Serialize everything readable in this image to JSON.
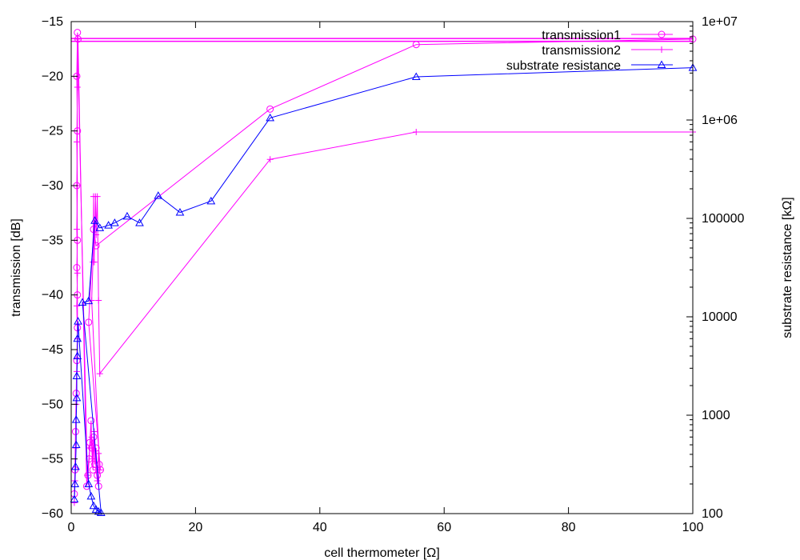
{
  "chart_data": {
    "type": "line",
    "xlabel": "cell thermometer [Ω]",
    "ylabel": "transmission [dB]",
    "y2label": "substrate resistance [kΩ]",
    "xlim": [
      0,
      100
    ],
    "ylim": [
      -60,
      -15
    ],
    "y2lim": [
      100,
      10000000
    ],
    "y2scale": "log",
    "x_ticks": [
      "0",
      "20",
      "40",
      "60",
      "80",
      "100"
    ],
    "y_ticks": [
      "-15",
      "-20",
      "-25",
      "-30",
      "-35",
      "-40",
      "-45",
      "-50",
      "-55",
      "-60"
    ],
    "y2_ticks": [
      "1e+07",
      "1e+06",
      "100000",
      "10000",
      "1000",
      "100"
    ],
    "legend_position": "top-right",
    "grid": false,
    "series": [
      {
        "name": "transmission1",
        "axis": "left",
        "color": "#ff00ff",
        "marker": "circle",
        "points": [
          [
            0.5,
            -58.2
          ],
          [
            0.6,
            -56.0
          ],
          [
            0.7,
            -52.5
          ],
          [
            0.8,
            -49.0
          ],
          [
            0.9,
            -46.0
          ],
          [
            1.0,
            -43.0
          ],
          [
            1.0,
            -40.0
          ],
          [
            0.9,
            -37.5
          ],
          [
            1.0,
            -35.0
          ],
          [
            0.9,
            -30.0
          ],
          [
            1.0,
            -25.0
          ],
          [
            0.9,
            -20.0
          ],
          [
            1.0,
            -16.0
          ],
          [
            1.1,
            -16.6
          ],
          [
            2.5,
            -57.5
          ],
          [
            2.7,
            -56.5
          ],
          [
            2.9,
            -55.0
          ],
          [
            3.0,
            -53.5
          ],
          [
            3.2,
            -51.5
          ],
          [
            3.3,
            -54.0
          ],
          [
            3.5,
            -56.0
          ],
          [
            3.6,
            -53.0
          ],
          [
            3.8,
            -55.5
          ],
          [
            4.0,
            -54.0
          ],
          [
            4.2,
            -56.5
          ],
          [
            4.4,
            -57.5
          ],
          [
            4.5,
            -55.5
          ],
          [
            4.7,
            -56.0
          ],
          [
            2.8,
            -42.5
          ],
          [
            3.6,
            -34.0
          ],
          [
            4.0,
            -35.5
          ],
          [
            32.0,
            -23.0
          ],
          [
            55.5,
            -17.1
          ],
          [
            100.0,
            -16.6
          ]
        ]
      },
      {
        "name": "transmission2",
        "axis": "left",
        "color": "#ff00ff",
        "marker": "plus",
        "points": [
          [
            0.5,
            -59.0
          ],
          [
            0.6,
            -57.0
          ],
          [
            0.7,
            -54.0
          ],
          [
            0.8,
            -50.0
          ],
          [
            0.9,
            -47.0
          ],
          [
            1.0,
            -44.0
          ],
          [
            0.9,
            -41.0
          ],
          [
            1.0,
            -38.0
          ],
          [
            0.9,
            -34.0
          ],
          [
            1.0,
            -30.0
          ],
          [
            0.9,
            -26.0
          ],
          [
            1.0,
            -21.0
          ],
          [
            1.0,
            -16.6
          ],
          [
            2.6,
            -56.5
          ],
          [
            3.0,
            -54.0
          ],
          [
            3.3,
            -53.0
          ],
          [
            3.5,
            -55.0
          ],
          [
            3.7,
            -52.5
          ],
          [
            4.0,
            -56.0
          ],
          [
            4.2,
            -57.0
          ],
          [
            4.4,
            -54.5
          ],
          [
            4.6,
            -56.0
          ],
          [
            3.3,
            -40.5
          ],
          [
            3.5,
            -37.0
          ],
          [
            3.6,
            -31.0
          ],
          [
            3.7,
            -37.0
          ],
          [
            3.9,
            -31.0
          ],
          [
            4.0,
            -34.5
          ],
          [
            4.2,
            -31.0
          ],
          [
            4.4,
            -40.5
          ],
          [
            4.6,
            -47.2
          ],
          [
            32.0,
            -27.6
          ],
          [
            55.5,
            -25.1
          ],
          [
            100.0,
            -25.1
          ]
        ]
      },
      {
        "name": "substrate resistance",
        "axis": "right",
        "color": "#0000ff",
        "marker": "triangle",
        "points": [
          [
            0.5,
            140
          ],
          [
            0.6,
            200
          ],
          [
            0.7,
            300
          ],
          [
            0.8,
            500
          ],
          [
            0.8,
            900
          ],
          [
            0.9,
            1500
          ],
          [
            0.9,
            2500
          ],
          [
            1.0,
            4000
          ],
          [
            1.0,
            6000
          ],
          [
            1.1,
            9000
          ],
          [
            2.8,
            200
          ],
          [
            3.2,
            150
          ],
          [
            3.6,
            120
          ],
          [
            4.0,
            110
          ],
          [
            4.4,
            105
          ],
          [
            4.8,
            102
          ],
          [
            1.8,
            14000
          ],
          [
            2.8,
            14500
          ],
          [
            3.8,
            95000
          ],
          [
            4.6,
            80000
          ],
          [
            6.0,
            85000
          ],
          [
            7.0,
            90000
          ],
          [
            9.0,
            105000
          ],
          [
            11.0,
            90000
          ],
          [
            14.0,
            170000
          ],
          [
            17.5,
            115000
          ],
          [
            22.5,
            150000
          ],
          [
            32.0,
            1050000
          ],
          [
            55.5,
            2750000
          ],
          [
            100.0,
            3400000
          ]
        ]
      }
    ],
    "reference_lines": [
      {
        "y": -16.55,
        "axis": "left",
        "color": "#ff00ff"
      },
      {
        "y": -16.8,
        "axis": "left",
        "color": "#ff00ff"
      }
    ]
  }
}
